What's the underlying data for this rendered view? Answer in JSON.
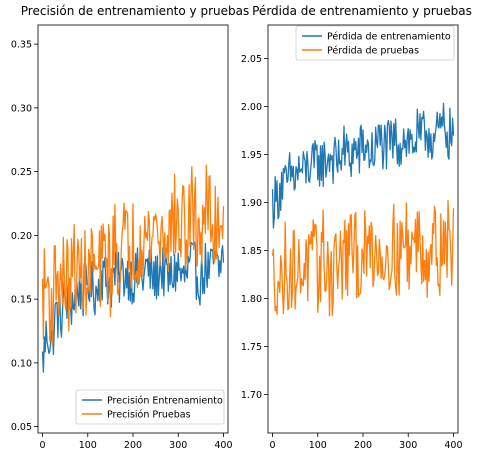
{
  "chart_data": [
    {
      "type": "line",
      "title": "Precisión de entrenamiento y pruebas",
      "xlabel": "",
      "ylabel": "",
      "xlim": [
        -10,
        410
      ],
      "ylim": [
        0.045,
        0.365
      ],
      "xticks": [
        0,
        100,
        200,
        300,
        400
      ],
      "yticks": [
        0.05,
        0.1,
        0.15,
        0.2,
        0.25,
        0.3,
        0.35
      ],
      "ytick_labels": [
        "0.05",
        "0.10",
        "0.15",
        "0.20",
        "0.25",
        "0.30",
        "0.35"
      ],
      "legend_position": "lower-right",
      "grid": false,
      "x": [
        0,
        10,
        20,
        30,
        40,
        50,
        60,
        70,
        80,
        90,
        100,
        110,
        120,
        130,
        140,
        150,
        160,
        170,
        180,
        190,
        200,
        210,
        220,
        230,
        240,
        250,
        260,
        270,
        280,
        290,
        300,
        310,
        320,
        330,
        340,
        350,
        360,
        370,
        380,
        390,
        400
      ],
      "series": [
        {
          "name": "Precisión Entrenamiento",
          "color": "#1f77b4",
          "values": [
            0.1,
            0.125,
            0.115,
            0.14,
            0.135,
            0.15,
            0.145,
            0.15,
            0.16,
            0.155,
            0.165,
            0.16,
            0.155,
            0.17,
            0.165,
            0.16,
            0.17,
            0.165,
            0.17,
            0.17,
            0.165,
            0.17,
            0.165,
            0.175,
            0.17,
            0.165,
            0.175,
            0.17,
            0.165,
            0.17,
            0.175,
            0.165,
            0.17,
            0.18,
            0.17,
            0.165,
            0.175,
            0.17,
            0.18,
            0.17,
            0.19
          ]
        },
        {
          "name": "Precisión Pruebas",
          "color": "#ff7f0e",
          "values": [
            0.15,
            0.165,
            0.14,
            0.175,
            0.16,
            0.17,
            0.155,
            0.18,
            0.165,
            0.175,
            0.16,
            0.185,
            0.165,
            0.175,
            0.19,
            0.17,
            0.195,
            0.18,
            0.2,
            0.185,
            0.195,
            0.19,
            0.205,
            0.195,
            0.2,
            0.21,
            0.195,
            0.205,
            0.2,
            0.215,
            0.205,
            0.21,
            0.2,
            0.22,
            0.21,
            0.2,
            0.225,
            0.215,
            0.2,
            0.22,
            0.21
          ]
        }
      ]
    },
    {
      "type": "line",
      "title": "Pérdida de entrenamiento y pruebas",
      "xlabel": "",
      "ylabel": "",
      "xlim": [
        -10,
        410
      ],
      "ylim": [
        1.66,
        2.085
      ],
      "xticks": [
        0,
        100,
        200,
        300,
        400
      ],
      "yticks": [
        1.7,
        1.75,
        1.8,
        1.85,
        1.9,
        1.95,
        2.0,
        2.05
      ],
      "ytick_labels": [
        "1.70",
        "1.75",
        "1.80",
        "1.85",
        "1.90",
        "1.95",
        "2.00",
        "2.05"
      ],
      "legend_position": "upper-right",
      "grid": false,
      "x": [
        0,
        10,
        20,
        30,
        40,
        50,
        60,
        70,
        80,
        90,
        100,
        110,
        120,
        130,
        140,
        150,
        160,
        170,
        180,
        190,
        200,
        210,
        220,
        230,
        240,
        250,
        260,
        270,
        280,
        290,
        300,
        310,
        320,
        330,
        340,
        350,
        360,
        370,
        380,
        390,
        400
      ],
      "series": [
        {
          "name": "Pérdida de entrenamiento",
          "color": "#1f77b4",
          "values": [
            1.9,
            1.905,
            1.92,
            1.915,
            1.93,
            1.925,
            1.935,
            1.93,
            1.94,
            1.935,
            1.945,
            1.94,
            1.945,
            1.95,
            1.94,
            1.95,
            1.955,
            1.945,
            1.955,
            1.95,
            1.96,
            1.955,
            1.95,
            1.96,
            1.965,
            1.955,
            1.96,
            1.965,
            1.96,
            1.97,
            1.965,
            1.96,
            1.97,
            1.965,
            1.975,
            1.97,
            1.965,
            1.975,
            1.98,
            1.97,
            1.975
          ]
        },
        {
          "name": "Pérdida de pruebas",
          "color": "#ff7f0e",
          "values": [
            1.82,
            1.83,
            1.81,
            1.84,
            1.825,
            1.835,
            1.82,
            1.845,
            1.83,
            1.84,
            1.825,
            1.85,
            1.835,
            1.82,
            1.845,
            1.83,
            1.85,
            1.84,
            1.855,
            1.835,
            1.85,
            1.84,
            1.86,
            1.845,
            1.855,
            1.84,
            1.86,
            1.85,
            1.845,
            1.86,
            1.855,
            1.85,
            1.865,
            1.855,
            1.845,
            1.86,
            1.855,
            1.85,
            1.865,
            1.855,
            1.86
          ]
        }
      ]
    }
  ]
}
